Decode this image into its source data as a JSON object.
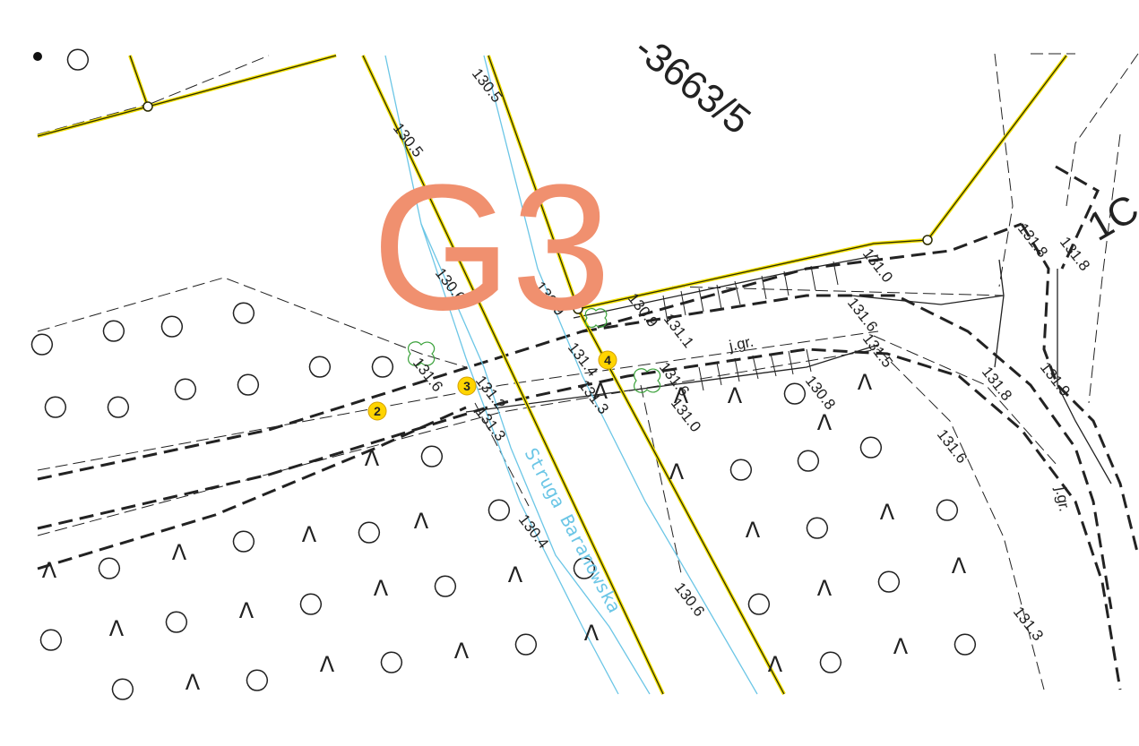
{
  "sheet_label": "G3",
  "parcel_label": "-3663/5",
  "parcel_label_right": "1C",
  "stream_label": "Struga Baranowska",
  "ground_labels": [
    "j.gr.",
    "j.gr."
  ],
  "elevations": [
    "130.5",
    "130.5",
    "130.6",
    "130.9",
    "130.9",
    "131.1",
    "131.4",
    "131.6",
    "131.2",
    "131.3",
    "131.3",
    "131.6",
    "131.0",
    "131.0",
    "131.6",
    "131.5",
    "130.8",
    "131.8",
    "131.8",
    "131.8",
    "131.9",
    "131.6",
    "130.4",
    "130.6",
    "131.3"
  ],
  "markers": [
    "2",
    "3",
    "4"
  ],
  "colors": {
    "parcel_line": "#2b2b00",
    "parcel_highlight": "#f3e000",
    "stream": "#6cc6e6",
    "sheet_label": "#f0906f",
    "marker_fill": "#ffd400",
    "tree_symbol": "#3aa13a"
  },
  "symbols": {
    "grass": "Λ",
    "bush": "◯"
  }
}
